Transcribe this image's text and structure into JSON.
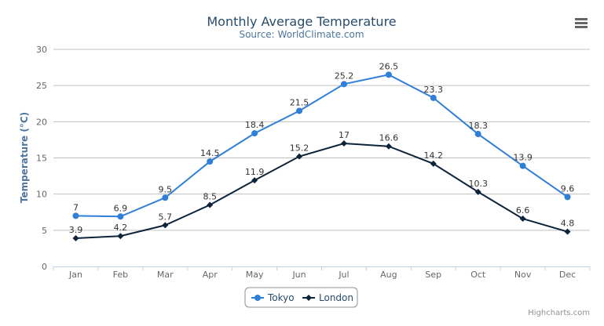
{
  "chart_data": {
    "type": "line",
    "title": "Monthly Average Temperature",
    "subtitle": "Source: WorldClimate.com",
    "xlabel": "",
    "ylabel": "Temperature (°C)",
    "categories": [
      "Jan",
      "Feb",
      "Mar",
      "Apr",
      "May",
      "Jun",
      "Jul",
      "Aug",
      "Sep",
      "Oct",
      "Nov",
      "Dec"
    ],
    "ylim": [
      0,
      30
    ],
    "yticks": [
      0,
      5,
      10,
      15,
      20,
      25,
      30
    ],
    "grid": true,
    "legend_position": "bottom-center",
    "data_labels": true,
    "series": [
      {
        "name": "Tokyo",
        "color": "#2f7ed8",
        "marker": "circle",
        "values": [
          7,
          6.9,
          9.5,
          14.5,
          18.4,
          21.5,
          25.2,
          26.5,
          23.3,
          18.3,
          13.9,
          9.6
        ]
      },
      {
        "name": "London",
        "color": "#0d233a",
        "marker": "diamond",
        "values": [
          3.9,
          4.2,
          5.7,
          8.5,
          11.9,
          15.2,
          17,
          16.6,
          14.2,
          10.3,
          6.6,
          4.8
        ]
      }
    ]
  },
  "credits": "Highcharts.com",
  "menu_icon": "hamburger-menu-icon",
  "colors": {
    "title": "#274b6d",
    "subtitle": "#4d759e",
    "axis_text": "#666666"
  }
}
